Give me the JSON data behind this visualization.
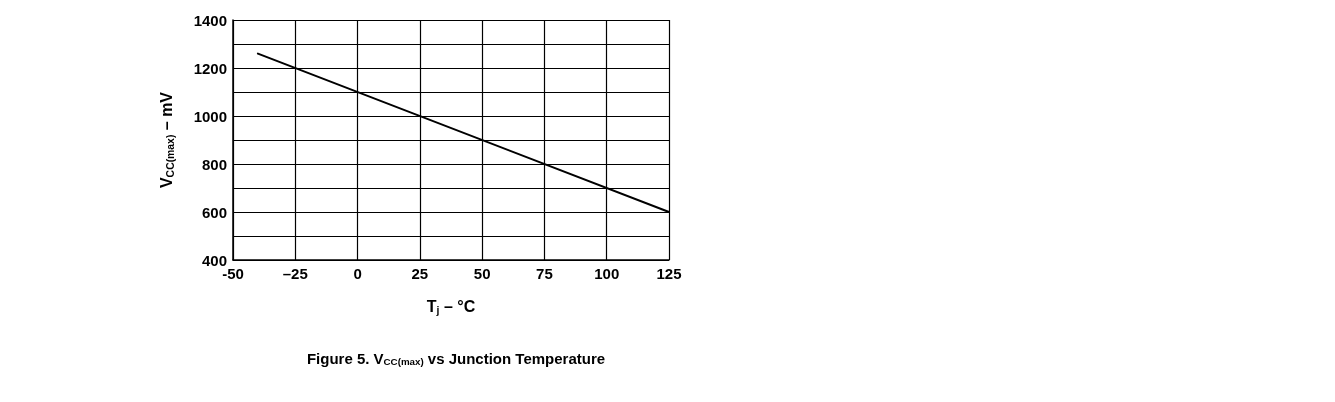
{
  "chart_data": {
    "type": "line",
    "title": "Figure 5. V$_{CC(max)}$ vs Junction Temperature",
    "xlabel": "T$_{j}$ – °C",
    "ylabel": "V$_{CC(max)}$ – mV",
    "x": [
      -40,
      125
    ],
    "series": [
      {
        "color": "#000000",
        "values": [
          1260,
          600
        ]
      }
    ],
    "xlim": [
      -50,
      125
    ],
    "xticks": [
      -50,
      {
        "value": -25,
        "label": "–25"
      },
      0,
      25,
      50,
      75,
      100,
      125
    ],
    "ylim": [
      400,
      1400
    ],
    "yticks": [
      400,
      {
        "value": 500,
        "label": null
      },
      600,
      {
        "value": 700,
        "label": null
      },
      800,
      {
        "value": 900,
        "label": null
      },
      1000,
      {
        "value": 1100,
        "label": null
      },
      1200,
      {
        "value": 1300,
        "label": null
      },
      1400
    ],
    "grid": true,
    "marker": "none",
    "line_style": "solid"
  }
}
